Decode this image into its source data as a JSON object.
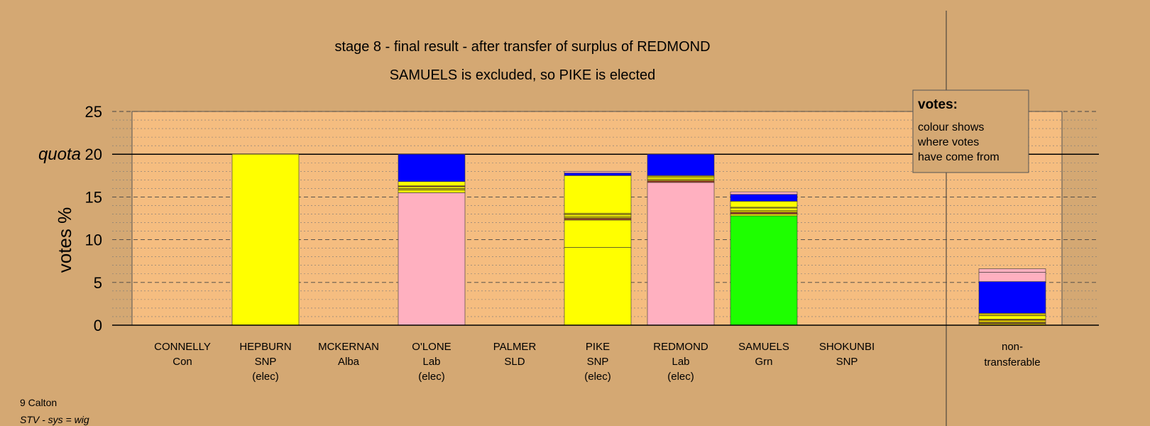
{
  "chart_data": {
    "type": "bar",
    "stacked": true,
    "title": "stage 8 - final result - after transfer of surplus of REDMOND",
    "subtitle": "SAMUELS is excluded, so PIKE is elected",
    "ylabel": "votes %",
    "ylim": [
      0,
      25
    ],
    "yticks": [
      "0",
      "5",
      "10",
      "15",
      "20",
      "25"
    ],
    "quota": {
      "label": "quota",
      "value": 20
    },
    "grid": true,
    "colors": {
      "snp": "#FFFF00",
      "lab": "#FFB0C0",
      "grn": "#1EFF00",
      "transfer": "#0000FF",
      "mix1": "#C8B400",
      "mix2": "#A04020",
      "background": "#D4A873",
      "plot": "#F5BD80"
    },
    "categories": [
      {
        "name": "CONNELLY",
        "party": "Con",
        "status": "",
        "segments": []
      },
      {
        "name": "HEPBURN",
        "party": "SNP",
        "status": "(elec)",
        "segments": [
          {
            "c": "snp",
            "v": 20.0
          }
        ]
      },
      {
        "name": "MCKERNAN",
        "party": "Alba",
        "status": "",
        "segments": []
      },
      {
        "name": "O'LONE",
        "party": "Lab",
        "status": "(elec)",
        "segments": [
          {
            "c": "lab",
            "v": 15.5
          },
          {
            "c": "snp",
            "v": 0.3
          },
          {
            "c": "mix1",
            "v": 0.2
          },
          {
            "c": "snp",
            "v": 0.2
          },
          {
            "c": "mix2",
            "v": 0.1
          },
          {
            "c": "snp",
            "v": 0.5
          },
          {
            "c": "transfer",
            "v": 3.2
          }
        ]
      },
      {
        "name": "PALMER",
        "party": "SLD",
        "status": "",
        "segments": []
      },
      {
        "name": "PIKE",
        "party": "SNP",
        "status": "(elec)",
        "segments": [
          {
            "c": "snp",
            "v": 9.1
          },
          {
            "c": "snp",
            "v": 3.2
          },
          {
            "c": "mix2",
            "v": 0.2
          },
          {
            "c": "mix1",
            "v": 0.2
          },
          {
            "c": "snp",
            "v": 0.2
          },
          {
            "c": "mix1",
            "v": 0.2
          },
          {
            "c": "snp",
            "v": 4.4
          },
          {
            "c": "transfer",
            "v": 0.3
          },
          {
            "c": "lab",
            "v": 0.2
          }
        ]
      },
      {
        "name": "REDMOND",
        "party": "Lab",
        "status": "(elec)",
        "segments": [
          {
            "c": "lab",
            "v": 16.7
          },
          {
            "c": "mix2",
            "v": 0.2
          },
          {
            "c": "mix1",
            "v": 0.2
          },
          {
            "c": "snp",
            "v": 0.2
          },
          {
            "c": "mix1",
            "v": 0.2
          },
          {
            "c": "transfer",
            "v": 2.5
          }
        ]
      },
      {
        "name": "SAMUELS",
        "party": "Grn",
        "status": "",
        "segments": [
          {
            "c": "grn",
            "v": 12.8
          },
          {
            "c": "snp",
            "v": 0.2
          },
          {
            "c": "mix2",
            "v": 0.2
          },
          {
            "c": "mix1",
            "v": 0.2
          },
          {
            "c": "snp",
            "v": 0.3
          },
          {
            "c": "mix1",
            "v": 0.1
          },
          {
            "c": "snp",
            "v": 0.7
          },
          {
            "c": "transfer",
            "v": 0.8
          },
          {
            "c": "lab",
            "v": 0.3
          }
        ]
      },
      {
        "name": "SHOKUNBI",
        "party": "SNP",
        "status": "",
        "segments": []
      }
    ],
    "nontransferable": {
      "label_line1": "non-",
      "label_line2": "transferable",
      "segments": [
        {
          "c": "mix1",
          "v": 0.2
        },
        {
          "c": "mix2",
          "v": 0.1
        },
        {
          "c": "mix1",
          "v": 0.3
        },
        {
          "c": "mix2",
          "v": 0.1
        },
        {
          "c": "snp",
          "v": 0.4
        },
        {
          "c": "mix1",
          "v": 0.3
        },
        {
          "c": "transfer",
          "v": 3.7
        },
        {
          "c": "lab",
          "v": 1.1
        },
        {
          "c": "lab",
          "v": 0.4
        }
      ]
    },
    "legend": {
      "title": "votes:",
      "line1": "colour shows",
      "line2": "where votes",
      "line3": "have come from"
    }
  },
  "footer": {
    "ward": "9 Calton",
    "system": "STV - sys = wig"
  }
}
